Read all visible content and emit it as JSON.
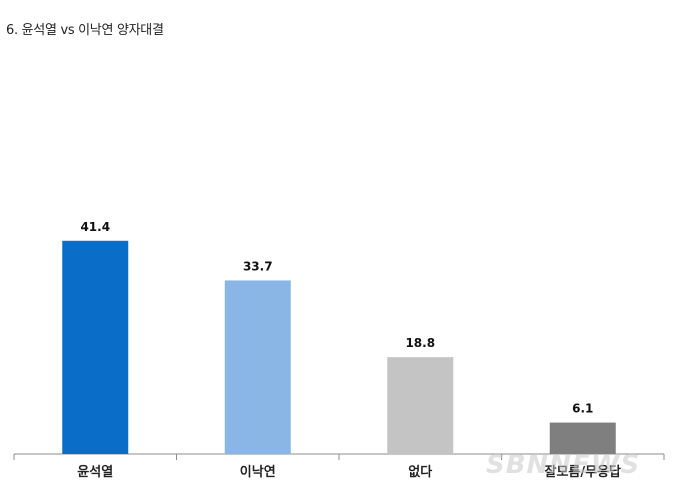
{
  "chart_data": {
    "type": "bar",
    "title": "6. 윤석열 vs 이낙연 양자대결",
    "categories": [
      "윤석열",
      "이낙연",
      "없다",
      "잘모름/무응답"
    ],
    "values": [
      41.4,
      33.7,
      18.8,
      6.1
    ],
    "value_labels": [
      "41.4",
      "33.7",
      "18.8",
      "6.1"
    ],
    "colors": [
      "#0a6dc8",
      "#8ab6e6",
      "#c4c4c4",
      "#7f7f7f"
    ],
    "xlabel": "",
    "ylabel": "",
    "ylim": [
      0,
      50
    ],
    "grid": false,
    "legend": "none"
  },
  "watermark": "SBNNEWS"
}
